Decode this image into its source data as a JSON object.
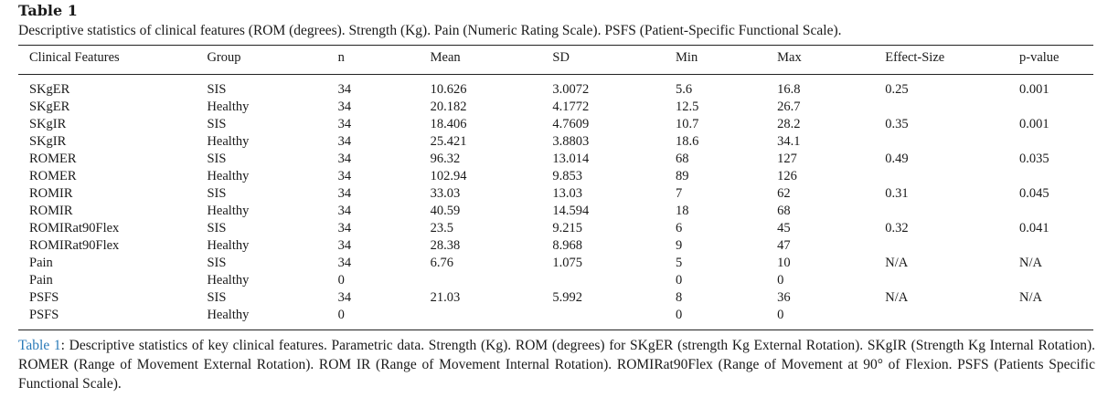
{
  "table": {
    "label": "Table 1",
    "caption": "Descriptive statistics of clinical features (ROM (degrees). Strength (Kg). Pain (Numeric Rating Scale). PSFS (Patient-Specific Functional Scale).",
    "headers": [
      "Clinical Features",
      "Group",
      "n",
      "Mean",
      "SD",
      "Min",
      "Max",
      "Effect-Size",
      "p-value"
    ],
    "rows": [
      [
        "SKgER",
        "SIS",
        "34",
        "10.626",
        "3.0072",
        "5.6",
        "16.8",
        "0.25",
        "0.001"
      ],
      [
        "SKgER",
        "Healthy",
        "34",
        "20.182",
        "4.1772",
        "12.5",
        "26.7",
        "",
        ""
      ],
      [
        "SKgIR",
        "SIS",
        "34",
        "18.406",
        "4.7609",
        "10.7",
        "28.2",
        "0.35",
        "0.001"
      ],
      [
        "SKgIR",
        "Healthy",
        "34",
        "25.421",
        "3.8803",
        "18.6",
        "34.1",
        "",
        ""
      ],
      [
        "ROMER",
        "SIS",
        "34",
        "96.32",
        "13.014",
        "68",
        "127",
        "0.49",
        "0.035"
      ],
      [
        "ROMER",
        "Healthy",
        "34",
        "102.94",
        "9.853",
        "89",
        "126",
        "",
        ""
      ],
      [
        "ROMIR",
        "SIS",
        "34",
        "33.03",
        "13.03",
        "7",
        "62",
        "0.31",
        "0.045"
      ],
      [
        "ROMIR",
        "Healthy",
        "34",
        "40.59",
        "14.594",
        "18",
        "68",
        "",
        ""
      ],
      [
        "ROMIRat90Flex",
        "SIS",
        "34",
        "23.5",
        "9.215",
        "6",
        "45",
        "0.32",
        "0.041"
      ],
      [
        "ROMIRat90Flex",
        "Healthy",
        "34",
        "28.38",
        "8.968",
        "9",
        "47",
        "",
        ""
      ],
      [
        "Pain",
        "SIS",
        "34",
        "6.76",
        "1.075",
        "5",
        "10",
        "N/A",
        "N/A"
      ],
      [
        "Pain",
        "Healthy",
        "0",
        "",
        "",
        "0",
        "0",
        "",
        ""
      ],
      [
        "PSFS",
        "SIS",
        "34",
        "21.03",
        "5.992",
        "8",
        "36",
        "N/A",
        "N/A"
      ],
      [
        "PSFS",
        "Healthy",
        "0",
        "",
        "",
        "0",
        "0",
        "",
        ""
      ]
    ]
  },
  "footnote": {
    "ref": "Table 1",
    "text": ": Descriptive statistics of key clinical features. Parametric data. Strength (Kg). ROM (degrees) for SKgER (strength Kg External Rotation). SKgIR (Strength Kg Internal Rotation). ROMER (Range of Movement External Rotation). ROM IR (Range of Movement Internal Rotation). ROMIRat90Flex (Range of Movement at 90° of Flexion. PSFS (Patients Specific Functional Scale)."
  }
}
